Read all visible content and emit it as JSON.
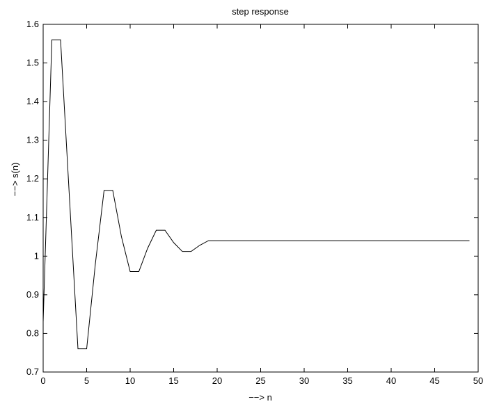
{
  "chart_data": {
    "type": "line",
    "title": "step response",
    "xlabel": "−−> n",
    "ylabel": "−−> s(n)",
    "xlim": [
      0,
      50
    ],
    "ylim": [
      0.7,
      1.6
    ],
    "grid": false,
    "xticks": [
      0,
      5,
      10,
      15,
      20,
      25,
      30,
      35,
      40,
      45,
      50
    ],
    "xtick_labels": [
      "0",
      "5",
      "10",
      "15",
      "20",
      "25",
      "30",
      "35",
      "40",
      "45",
      "50"
    ],
    "yticks": [
      0.7,
      0.8,
      0.9,
      1.0,
      1.1,
      1.2,
      1.3,
      1.4,
      1.5,
      1.6
    ],
    "ytick_labels": [
      "0.7",
      "0.8",
      "0.9",
      "1",
      "1.1",
      "1.2",
      "1.3",
      "1.4",
      "1.5",
      "1.6"
    ],
    "series": [
      {
        "color": "#000000",
        "x": [
          0,
          1,
          2,
          3,
          4,
          5,
          6,
          7,
          8,
          9,
          10,
          11,
          12,
          13,
          14,
          15,
          16,
          17,
          18,
          19,
          20,
          21,
          22,
          23,
          24,
          25,
          26,
          27,
          28,
          29,
          30,
          31,
          32,
          33,
          34,
          35,
          36,
          37,
          38,
          39,
          40,
          41,
          42,
          43,
          44,
          45,
          46,
          47,
          48,
          49
        ],
        "y": [
          0.83,
          1.56,
          1.56,
          1.16,
          0.76,
          0.76,
          0.98,
          1.17,
          1.17,
          1.05,
          0.96,
          0.96,
          1.02,
          1.067,
          1.067,
          1.035,
          1.012,
          1.012,
          1.028,
          1.04,
          1.04,
          1.04,
          1.04,
          1.04,
          1.04,
          1.04,
          1.04,
          1.04,
          1.04,
          1.04,
          1.04,
          1.04,
          1.04,
          1.04,
          1.04,
          1.04,
          1.04,
          1.04,
          1.04,
          1.04,
          1.04,
          1.04,
          1.04,
          1.04,
          1.04,
          1.04,
          1.04,
          1.04,
          1.04,
          1.04
        ]
      }
    ]
  }
}
